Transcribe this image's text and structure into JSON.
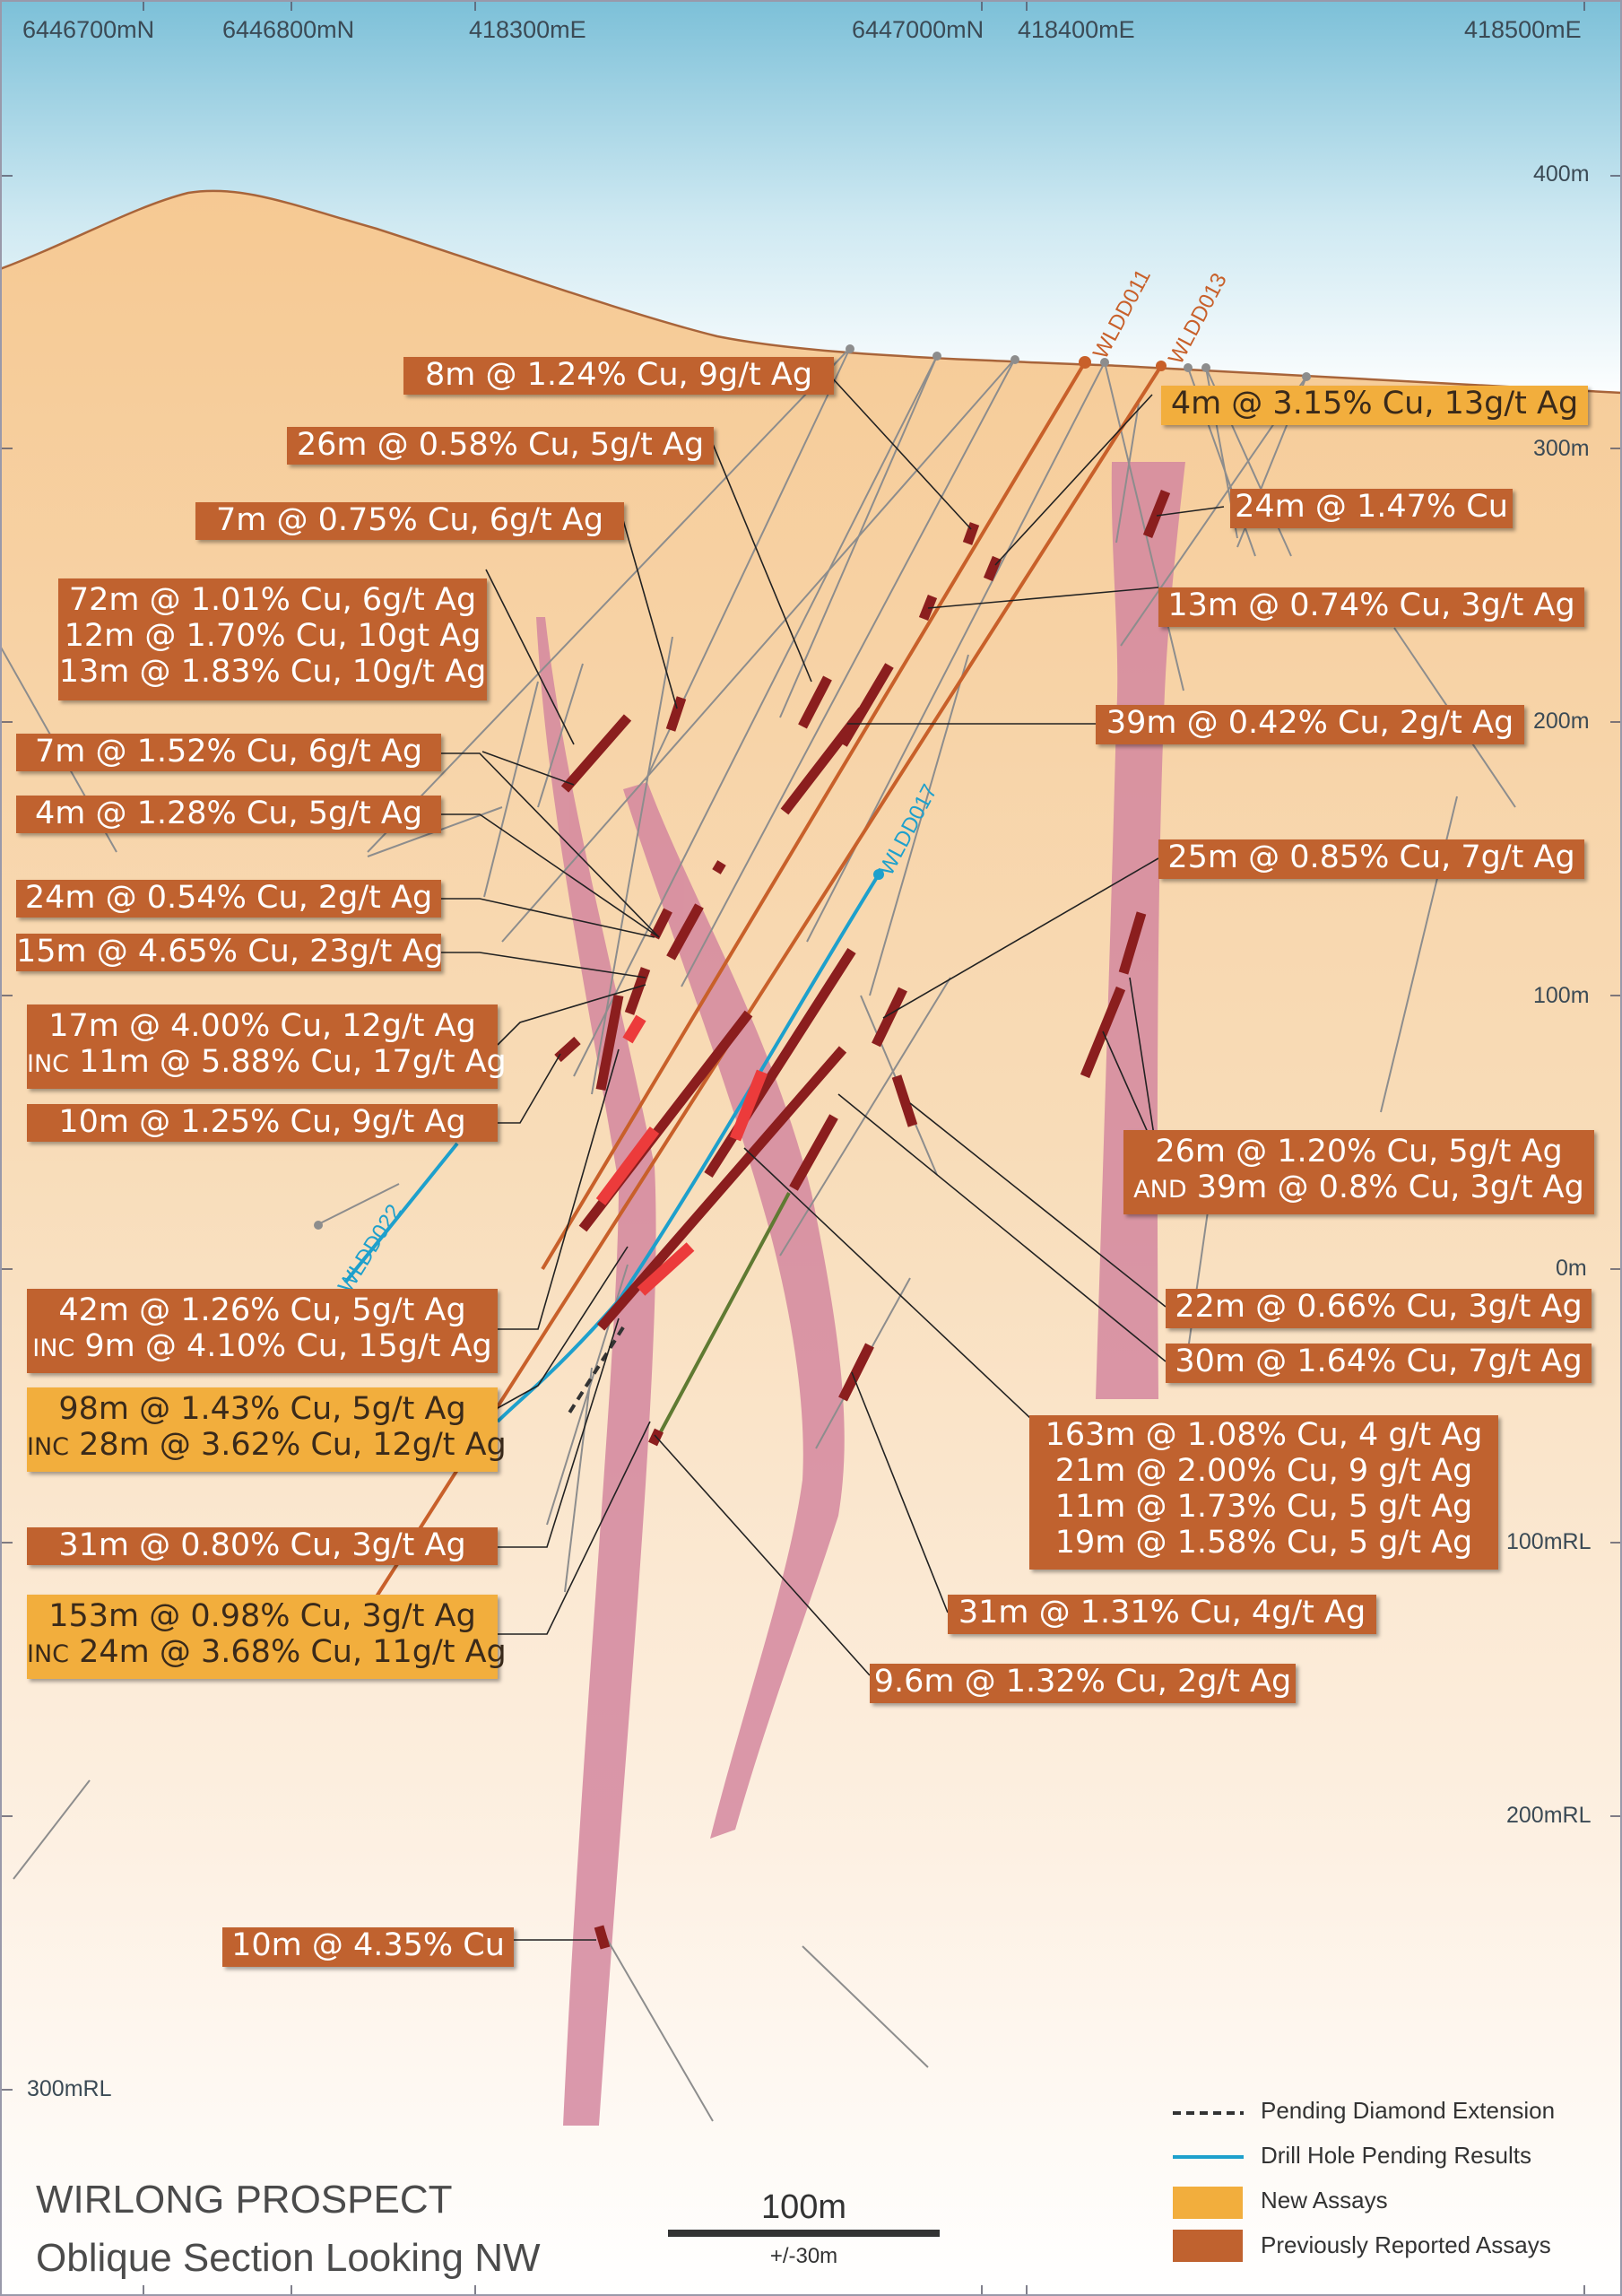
{
  "title": {
    "line1": "WIRLONG PROSPECT",
    "line2": "Oblique Section Looking NW"
  },
  "scale_bar": {
    "label": "100m",
    "sublabel": "+/-30m"
  },
  "axis_top": [
    "6446700mN",
    "6446800mN",
    "418300mE",
    "6447000mN",
    "418400mE",
    "418500mE"
  ],
  "axis_right": [
    "400m",
    "300m",
    "200m",
    "100m",
    "0m",
    "100mRL",
    "200mRL"
  ],
  "axis_left": [
    "300mRL"
  ],
  "drill_holes": [
    "WLDD011",
    "WLDD013",
    "WLDD017",
    "WLDD022"
  ],
  "legend": {
    "pending_extension": "Pending Diamond Extension",
    "pending_results": "Drill Hole Pending Results",
    "new_assays": "New Assays",
    "previous_assays": "Previously Reported Assays"
  },
  "colors": {
    "previous": "#c0622f",
    "new": "#f2ae3d",
    "lode": "#d4879f",
    "sky_top": "#7cc0d8",
    "ground": "#f6cb97",
    "pending_hole": "#1ea0cc",
    "hole_orange": "#c8602a"
  },
  "labels": {
    "l1": "8m @ 1.24% Cu, 9g/t Ag",
    "l2": "26m @ 0.58% Cu, 5g/t Ag",
    "l3": "7m @ 0.75% Cu, 6g/t Ag",
    "l4a": "72m @ 1.01% Cu,  6g/t Ag",
    "l4b": "12m @ 1.70% Cu,  10gt Ag",
    "l4c": "13m @ 1.83% Cu, 10g/t Ag",
    "l5": "7m @ 1.52% Cu, 6g/t Ag",
    "l6": "4m @ 1.28% Cu, 5g/t Ag",
    "l7": "24m @ 0.54% Cu, 2g/t Ag",
    "l8": "15m @ 4.65% Cu, 23g/t Ag",
    "l9a": "17m @ 4.00% Cu, 12g/t Ag",
    "l9b_prefix": "INC",
    "l9b": " 11m @ 5.88% Cu, 17g/t Ag",
    "l10": "10m @ 1.25% Cu, 9g/t Ag",
    "l11a": "42m @ 1.26% Cu, 5g/t Ag",
    "l11b_prefix": "INC",
    "l11b": " 9m @ 4.10% Cu, 15g/t Ag",
    "l12a": "98m @ 1.43% Cu, 5g/t Ag",
    "l12b_prefix": "INC",
    "l12b": " 28m @ 3.62% Cu, 12g/t Ag",
    "l13": "31m @ 0.80% Cu, 3g/t Ag",
    "l14a": "153m @ 0.98% Cu, 3g/t Ag",
    "l14b_prefix": "INC",
    "l14b": " 24m @ 3.68% Cu, 11g/t Ag",
    "l15": "10m @ 4.35% Cu",
    "r1": "4m @ 3.15% Cu, 13g/t Ag",
    "r2": "24m @ 1.47% Cu",
    "r3": "13m @ 0.74% Cu, 3g/t Ag",
    "r4": "39m @ 0.42% Cu, 2g/t Ag",
    "r5": "25m @ 0.85% Cu, 7g/t Ag",
    "r6a": "26m @ 1.20% Cu, 5g/t Ag",
    "r6b_prefix": "AND",
    "r6b": " 39m @ 0.8% Cu, 3g/t Ag",
    "r7": "22m @ 0.66% Cu, 3g/t Ag",
    "r8": "30m @ 1.64% Cu, 7g/t Ag",
    "r9a": "163m @ 1.08% Cu, 4 g/t Ag",
    "r9b": "21m @ 2.00% Cu, 9 g/t Ag",
    "r9c": "11m @ 1.73% Cu, 5 g/t Ag",
    "r9d": "19m @ 1.58% Cu, 5 g/t Ag",
    "r10": "31m @ 1.31% Cu, 4g/t Ag",
    "r11": "9.6m @ 1.32% Cu, 2g/t Ag"
  }
}
